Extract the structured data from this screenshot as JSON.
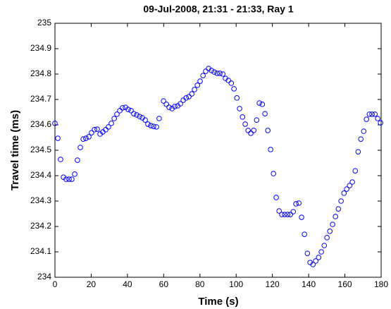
{
  "chart_data": {
    "type": "scatter",
    "title": "09-Jul-2008, 21:31 - 21:33, Ray 1",
    "x_label": "Time (s)",
    "y_label": "Travel time (ms)",
    "color": "#0000ff",
    "x": [
      0,
      1.6,
      3.1,
      4.7,
      6.2,
      7.8,
      9.3,
      10.9,
      12.4,
      14.0,
      15.6,
      17.1,
      18.7,
      20.2,
      21.8,
      23.3,
      24.9,
      26.4,
      28.0,
      29.5,
      31.1,
      32.7,
      34.2,
      35.8,
      37.3,
      38.9,
      40.4,
      42.0,
      43.5,
      45.1,
      46.7,
      48.2,
      49.8,
      51.3,
      52.9,
      54.4,
      56.0,
      57.5,
      59.9,
      61.5,
      63.0,
      64.6,
      66.1,
      67.7,
      69.2,
      70.8,
      72.4,
      73.9,
      75.5,
      77.0,
      78.6,
      80.1,
      81.7,
      83.2,
      84.8,
      86.4,
      87.9,
      89.5,
      91.0,
      92.6,
      94.1,
      95.7,
      97.3,
      98.8,
      100.4,
      101.9,
      103.5,
      105.0,
      106.6,
      108.1,
      109.7,
      111.3,
      112.8,
      114.4,
      115.9,
      117.5,
      119.0,
      120.6,
      122.1,
      123.7,
      125.2,
      126.8,
      128.4,
      129.9,
      131.5,
      133.0,
      134.6,
      136.1,
      137.7,
      139.3,
      140.8,
      142.4,
      143.9,
      145.5,
      147.0,
      148.6,
      150.1,
      151.7,
      153.2,
      154.8,
      156.4,
      157.9,
      159.5,
      161.0,
      162.6,
      164.1,
      165.7,
      167.3,
      168.8,
      170.4,
      171.9,
      173.5,
      175.0,
      176.6,
      178.1,
      179.7
    ],
    "values": [
      234.606,
      234.547,
      234.464,
      234.394,
      234.386,
      234.386,
      234.386,
      234.406,
      234.461,
      234.511,
      234.544,
      234.547,
      234.553,
      234.569,
      234.581,
      234.583,
      234.564,
      234.572,
      234.581,
      234.592,
      234.606,
      234.625,
      234.642,
      234.656,
      234.667,
      234.669,
      234.661,
      234.656,
      234.644,
      234.639,
      234.633,
      234.628,
      234.619,
      234.603,
      234.597,
      234.594,
      234.592,
      234.625,
      234.694,
      234.681,
      234.669,
      234.664,
      234.672,
      234.675,
      234.683,
      234.697,
      234.706,
      234.711,
      234.722,
      234.739,
      234.756,
      234.772,
      234.794,
      234.811,
      234.822,
      234.814,
      234.808,
      234.803,
      234.803,
      234.8,
      234.783,
      234.775,
      234.764,
      234.742,
      234.706,
      234.664,
      234.631,
      234.603,
      234.578,
      234.567,
      234.578,
      234.619,
      234.686,
      234.681,
      234.644,
      234.578,
      234.503,
      234.408,
      234.314,
      234.261,
      234.247,
      234.247,
      234.247,
      234.247,
      234.258,
      234.289,
      234.292,
      234.236,
      234.169,
      234.094,
      234.058,
      234.05,
      234.064,
      234.078,
      234.1,
      234.125,
      234.156,
      234.181,
      234.208,
      234.239,
      234.269,
      234.3,
      234.331,
      234.347,
      234.361,
      234.375,
      234.419,
      234.494,
      234.544,
      234.575,
      234.622,
      234.642,
      234.642,
      234.642,
      234.625,
      234.608
    ],
    "xlim": [
      0,
      180
    ],
    "xticks": [
      0,
      20,
      40,
      60,
      80,
      100,
      120,
      140,
      160,
      180
    ],
    "ylim": [
      234,
      235
    ],
    "yticks": [
      234,
      234.1,
      234.2,
      234.3,
      234.4,
      234.5,
      234.6,
      234.7,
      234.8,
      234.9,
      235
    ]
  }
}
